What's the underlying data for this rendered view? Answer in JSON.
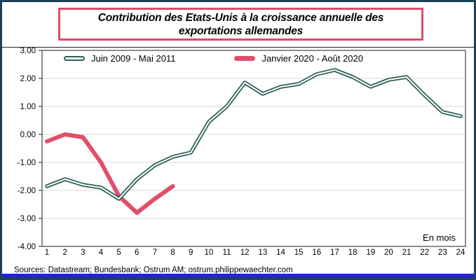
{
  "window": {
    "border_color": "#1B4259",
    "bottom_bar_color": "#2424CE"
  },
  "title": {
    "line1": "Contribution des Etats-Unis à la croissance annuelle des",
    "line2": "exportations allemandes",
    "border_color": "#D94F66"
  },
  "footer": "Sources: Datastream; Bundesbank; Ostrum AM; ostrum.philippewaechter.com",
  "chart_data": {
    "type": "line",
    "x": [
      "1",
      "2",
      "3",
      "4",
      "5",
      "6",
      "7",
      "8",
      "9",
      "10",
      "11",
      "12",
      "13",
      "14",
      "15",
      "16",
      "17",
      "18",
      "19",
      "20",
      "21",
      "22",
      "23",
      "24"
    ],
    "series": [
      {
        "name": "Juin 2009 - Mai 2011",
        "color": "#2E5F58",
        "style": "outlined",
        "values": [
          -1.85,
          -1.6,
          -1.8,
          -1.9,
          -2.3,
          -1.6,
          -1.1,
          -0.8,
          -0.65,
          0.45,
          1.0,
          1.85,
          1.45,
          1.7,
          1.8,
          2.15,
          2.3,
          2.05,
          1.7,
          1.95,
          2.05,
          1.4,
          0.8,
          0.65
        ]
      },
      {
        "name": "Janvier 2020 - Août 2020",
        "color": "#E0506A",
        "style": "solid",
        "values": [
          -0.25,
          0.0,
          -0.1,
          -1.0,
          -2.2,
          -2.8,
          -2.3,
          -1.85
        ]
      }
    ],
    "xlabel": "En mois",
    "ylabel": "",
    "ylim": [
      -4,
      3
    ],
    "yticks": [
      3,
      2,
      1,
      0,
      -1,
      -2,
      -3,
      -4
    ],
    "ytick_labels": [
      "3.00",
      "2.00",
      "1.00",
      "0.00",
      "-1.00",
      "-2.00",
      "-3.00",
      "-4.00"
    ],
    "grid": "horizontal",
    "grid_color": "#D9D9D9",
    "frame_color": "#444444",
    "legend_position": "top-left-inside"
  }
}
